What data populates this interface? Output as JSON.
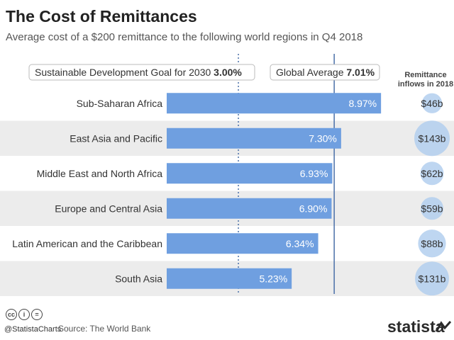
{
  "title": "The Cost of Remittances",
  "subtitle": "Average cost of a $200 remittance to the following world regions in Q4 2018",
  "footer": {
    "handle": "@StatistaCharts",
    "source": "Source: The World Bank",
    "logo": "statista",
    "license_icons": [
      "cc-icon",
      "person-icon",
      "equals-icon"
    ]
  },
  "colors": {
    "bar": "#6f9fe0",
    "stripe": "#ececec",
    "ref_line": "#4a6fa8",
    "bubble": "#b3cfef"
  },
  "chart_data": {
    "type": "bar",
    "orientation": "horizontal",
    "categories": [
      "Sub-Saharan Africa",
      "East Asia and Pacific",
      "Middle East and North Africa",
      "Europe and Central Asia",
      "Latin American and the Caribbean",
      "South Asia"
    ],
    "values": [
      8.97,
      7.3,
      6.93,
      6.9,
      6.34,
      5.23
    ],
    "value_labels": [
      "8.97%",
      "7.30%",
      "6.93%",
      "6.90%",
      "6.34%",
      "5.23%"
    ],
    "xlim": [
      0,
      9.5
    ],
    "reference_lines": [
      {
        "label": "Sustainable Development Goal for 2030",
        "value_label": "3.00%",
        "value": 3.0,
        "style": "dotted"
      },
      {
        "label": "Global Average",
        "value_label": "7.01%",
        "value": 7.01,
        "style": "solid"
      }
    ],
    "inflows": {
      "header": [
        "Remittance",
        "inflows in 2018"
      ],
      "values": [
        46,
        143,
        62,
        59,
        88,
        131
      ],
      "labels": [
        "$46b",
        "$143b",
        "$62b",
        "$59b",
        "$88b",
        "$131b"
      ]
    }
  }
}
